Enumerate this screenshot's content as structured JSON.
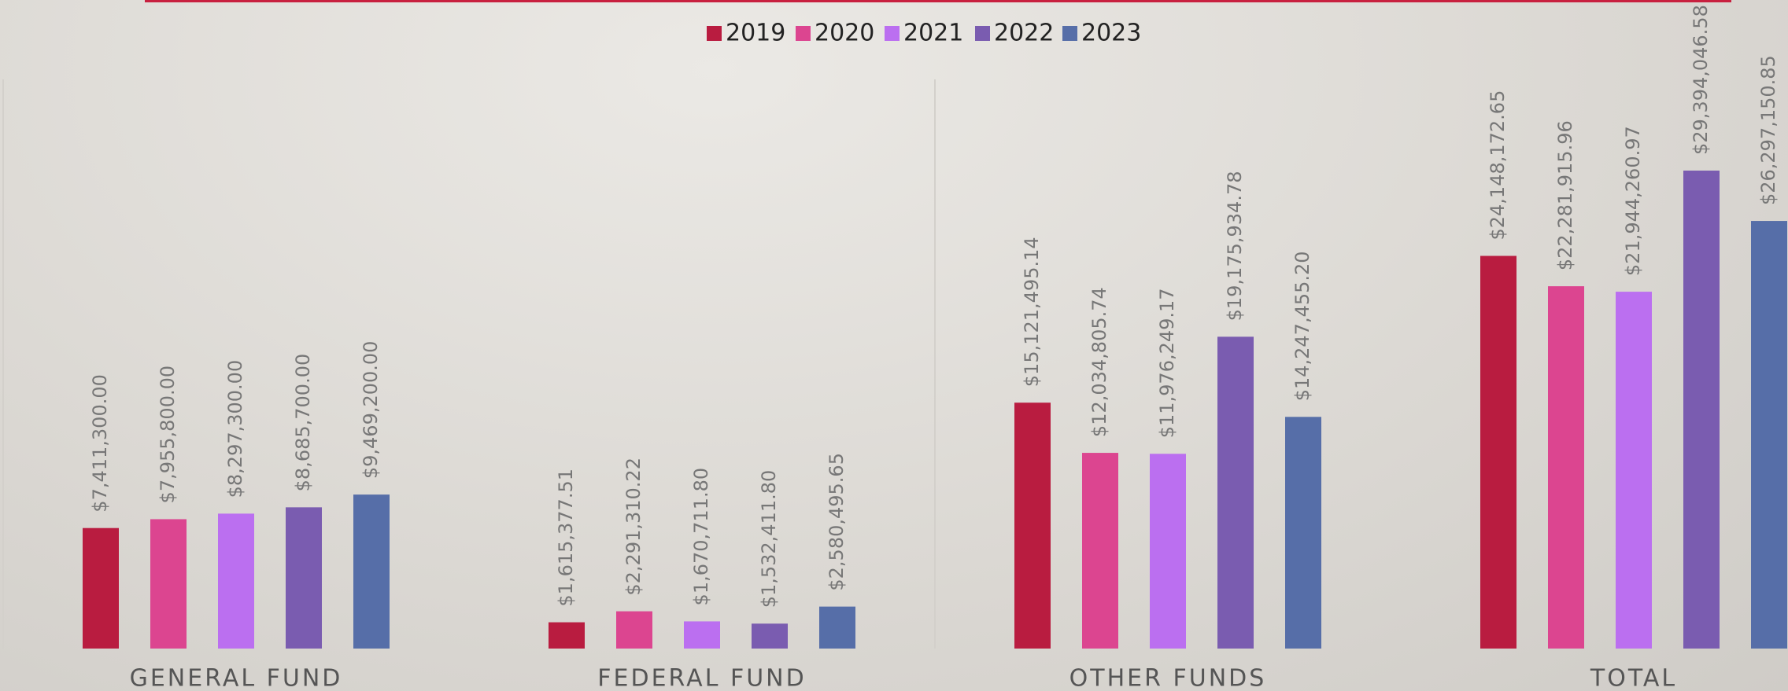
{
  "chart_data": {
    "type": "bar",
    "categories": [
      "GENERAL FUND",
      "FEDERAL FUND",
      "OTHER FUNDS",
      "TOTAL"
    ],
    "legend": "top",
    "series": [
      {
        "name": "2019",
        "color": "#b91c40",
        "values": [
          7411300.0,
          1615377.51,
          15121495.14,
          24148172.65
        ],
        "value_labels": [
          "$7,411,300.00",
          "$1,615,377.51",
          "$15,121,495.14",
          "$24,148,172.65"
        ]
      },
      {
        "name": "2020",
        "color": "#dc4590",
        "values": [
          7955800.0,
          2291310.22,
          12034805.74,
          22281915.96
        ],
        "value_labels": [
          "$7,955,800.00",
          "$2,291,310.22",
          "$12,034,805.74",
          "$22,281,915.96"
        ]
      },
      {
        "name": "2021",
        "color": "#bb6ff0",
        "values": [
          8297300.0,
          1670711.8,
          11976249.17,
          21944260.97
        ],
        "value_labels": [
          "$8,297,300.00",
          "$1,670,711.80",
          "$11,976,249.17",
          "$21,944,260.97"
        ]
      },
      {
        "name": "2022",
        "color": "#7a5cb0",
        "values": [
          8685700.0,
          1532411.8,
          19175934.78,
          29394046.58
        ],
        "value_labels": [
          "$8,685,700.00",
          "$1,532,411.80",
          "$19,175,934.78",
          "$29,394,046.58"
        ]
      },
      {
        "name": "2023",
        "color": "#566ea8",
        "values": [
          9469200.0,
          2580495.65,
          14247455.2,
          26297150.85
        ],
        "value_labels": [
          "$9,469,200.00",
          "$2,580,495.65",
          "$14,247,455.20",
          "$26,297,150.85"
        ]
      }
    ]
  }
}
